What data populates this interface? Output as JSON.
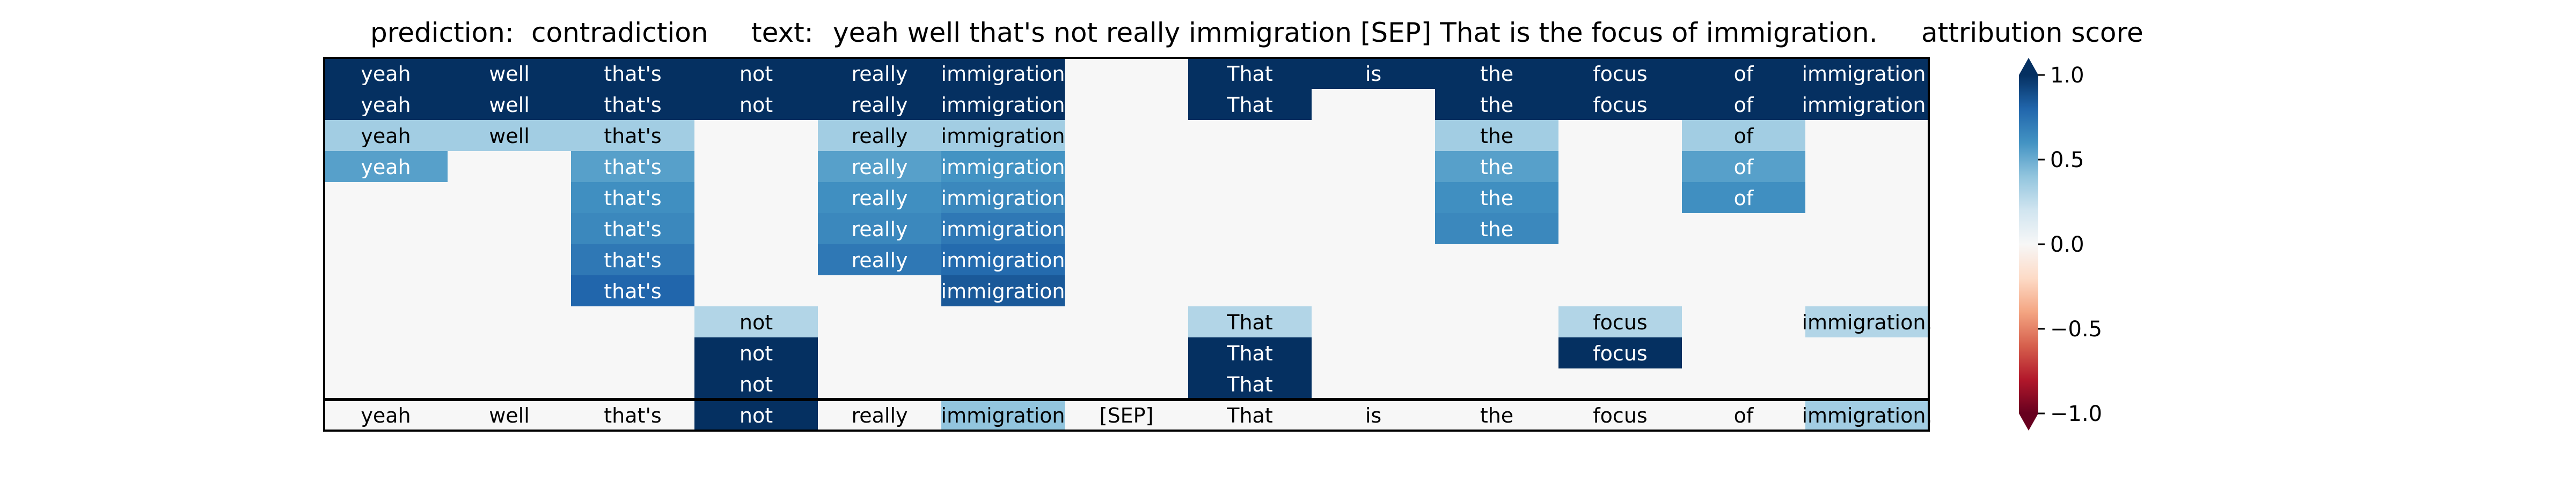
{
  "header": {
    "prediction_label": "prediction:",
    "prediction_value": "contradiction",
    "text_label": "text:",
    "text_value": "yeah well that's not really immigration [SEP] That is the focus of immigration."
  },
  "colorbar": {
    "title": "attribution score",
    "ticks": [
      "1.0",
      "0.5",
      "0.0",
      "−0.5",
      "−1.0"
    ]
  },
  "chart_data": {
    "type": "heatmap",
    "title": "attribution score",
    "tokens": [
      "yeah",
      "well",
      "that's",
      "not",
      "really",
      "immigration",
      "[SEP]",
      "That",
      "is",
      "the",
      "focus",
      "of",
      "immigration."
    ],
    "value_range": [
      -1.0,
      1.0
    ],
    "colormap": "RdBu",
    "rows": [
      [
        1.0,
        1.0,
        1.0,
        1.0,
        1.0,
        1.0,
        0.0,
        1.0,
        1.0,
        1.0,
        1.0,
        1.0,
        1.0
      ],
      [
        1.0,
        1.0,
        1.0,
        1.0,
        1.0,
        1.0,
        0.0,
        1.0,
        0.0,
        1.0,
        1.0,
        1.0,
        1.0
      ],
      [
        0.35,
        0.35,
        0.35,
        0.0,
        0.35,
        0.35,
        0.0,
        0.0,
        0.0,
        0.35,
        0.0,
        0.35,
        0.0
      ],
      [
        0.55,
        0.0,
        0.55,
        0.0,
        0.55,
        0.6,
        0.0,
        0.0,
        0.0,
        0.55,
        0.0,
        0.55,
        0.0
      ],
      [
        0.0,
        0.0,
        0.62,
        0.0,
        0.62,
        0.65,
        0.0,
        0.0,
        0.0,
        0.62,
        0.0,
        0.62,
        0.0
      ],
      [
        0.0,
        0.0,
        0.65,
        0.0,
        0.65,
        0.72,
        0.0,
        0.0,
        0.0,
        0.65,
        0.0,
        0.0,
        0.0
      ],
      [
        0.0,
        0.0,
        0.72,
        0.0,
        0.72,
        0.78,
        0.0,
        0.0,
        0.0,
        0.0,
        0.0,
        0.0,
        0.0
      ],
      [
        0.0,
        0.0,
        0.8,
        0.0,
        0.0,
        0.85,
        0.0,
        0.0,
        0.0,
        0.0,
        0.0,
        0.0,
        0.0
      ],
      [
        0.0,
        0.0,
        0.0,
        0.3,
        0.0,
        0.0,
        0.0,
        0.3,
        0.0,
        0.0,
        0.3,
        0.0,
        0.3
      ],
      [
        0.0,
        0.0,
        0.0,
        1.0,
        0.0,
        0.0,
        0.0,
        1.0,
        0.0,
        0.0,
        1.0,
        0.0,
        0.0
      ],
      [
        0.0,
        0.0,
        0.0,
        1.0,
        0.0,
        0.0,
        0.0,
        1.0,
        0.0,
        0.0,
        0.0,
        0.0,
        0.0
      ]
    ],
    "summary_row": [
      0.0,
      0.0,
      0.0,
      1.0,
      0.0,
      0.4,
      0.0,
      0.0,
      0.0,
      0.0,
      0.0,
      0.0,
      0.35
    ]
  }
}
